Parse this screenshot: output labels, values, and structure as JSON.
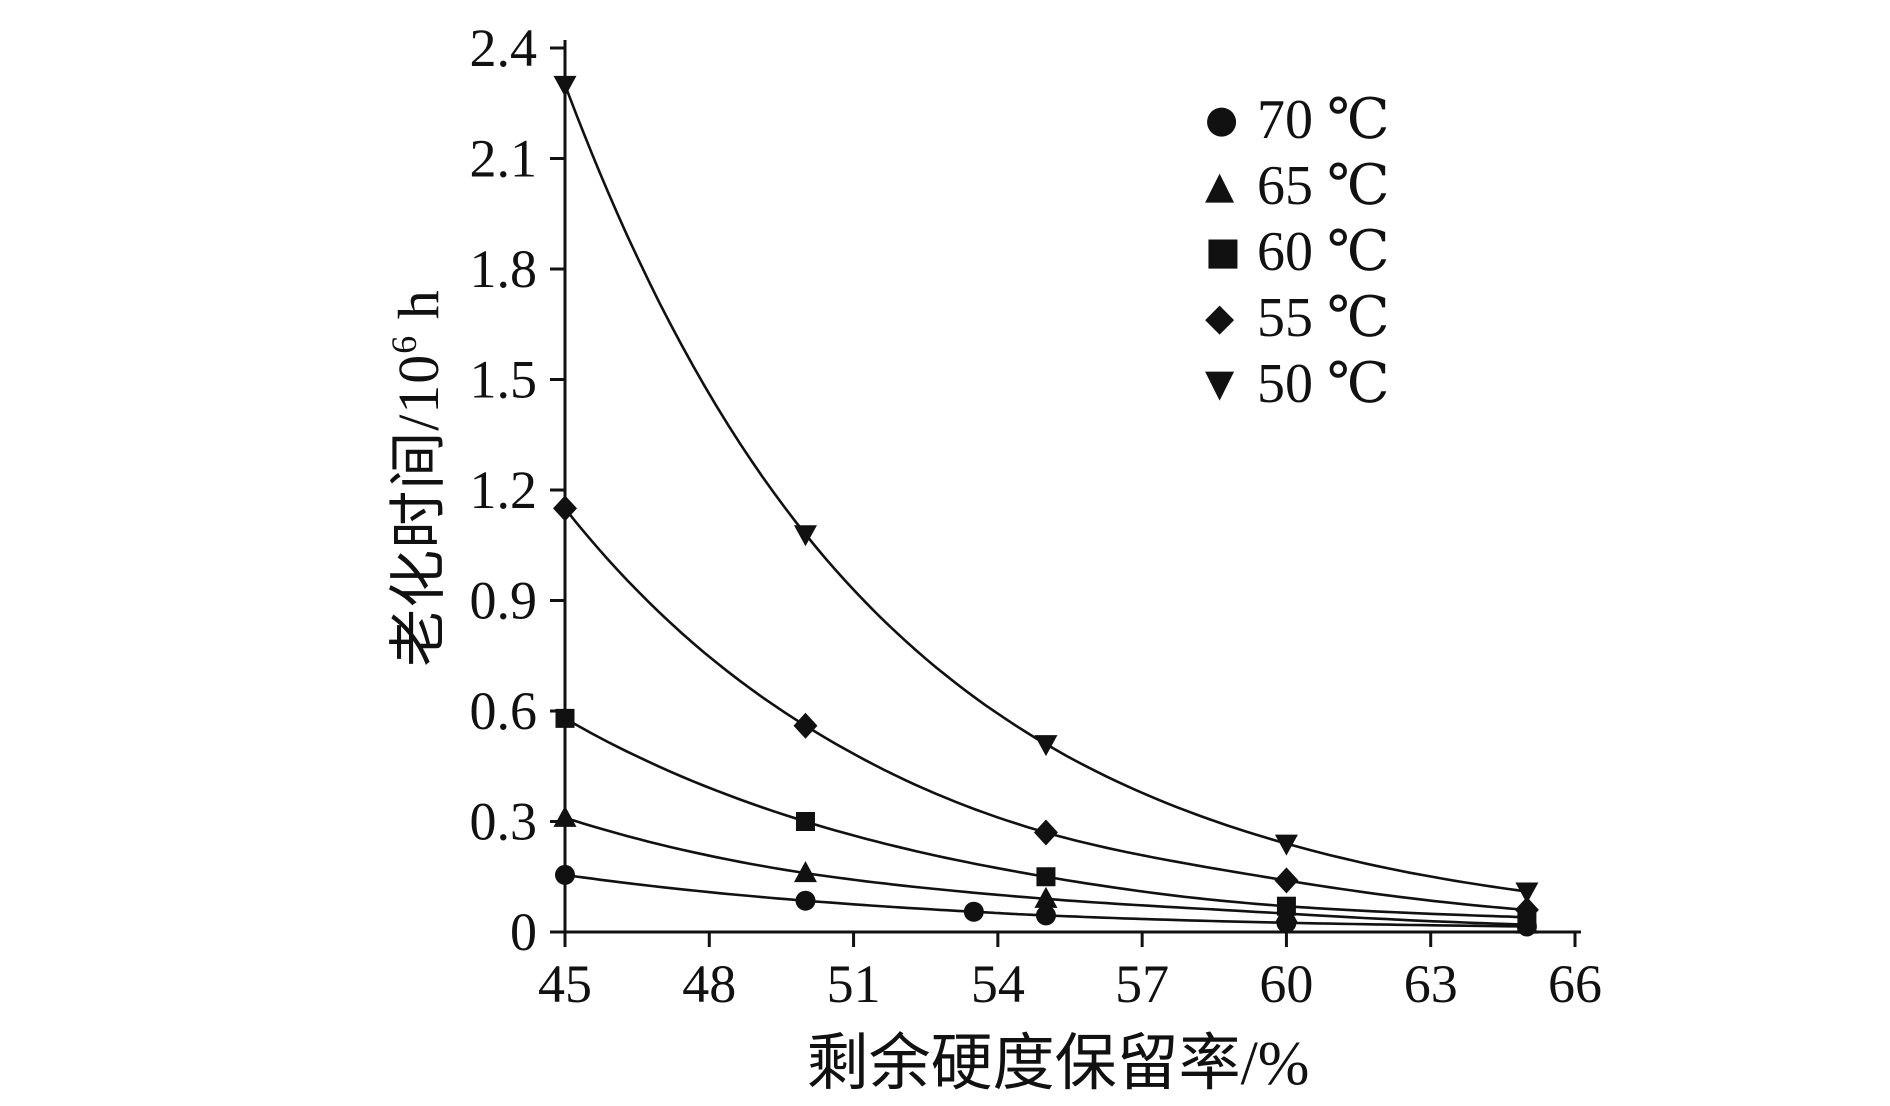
{
  "chart_data": {
    "type": "line",
    "title": "",
    "xlabel": "剩余硬度保留率/%",
    "ylabel_main": "老化时间/10",
    "ylabel_sup": "6",
    "ylabel_unit": " h",
    "xlim": [
      45,
      66
    ],
    "ylim": [
      0,
      2.4
    ],
    "x_ticks": [
      45,
      48,
      51,
      54,
      57,
      60,
      63,
      66
    ],
    "x_tick_labels": [
      "45",
      "48",
      "51",
      "54",
      "57",
      "60",
      "63",
      "66"
    ],
    "y_ticks": [
      0,
      0.3,
      0.6,
      0.9,
      1.2,
      1.5,
      1.8,
      2.1,
      2.4
    ],
    "y_tick_labels": [
      "0",
      "0.3",
      "0.6",
      "0.9",
      "1.2",
      "1.5",
      "1.8",
      "2.1",
      "2.4"
    ],
    "grid": false,
    "legend_position": "upper right",
    "axis_color": "#111111",
    "line_color": "#111111",
    "series": [
      {
        "name": "70 ℃",
        "legend_label": "70 ℃",
        "marker": "circle",
        "marker_glyph": "●",
        "x": [
          45,
          50,
          53.5,
          55,
          60,
          65
        ],
        "y": [
          0.155,
          0.085,
          0.055,
          0.045,
          0.025,
          0.015
        ]
      },
      {
        "name": "65 ℃",
        "legend_label": "65 ℃",
        "marker": "triangle-up",
        "marker_glyph": "▲",
        "x": [
          45,
          50,
          55,
          60,
          65
        ],
        "y": [
          0.31,
          0.16,
          0.09,
          0.05,
          0.02
        ]
      },
      {
        "name": "60 ℃",
        "legend_label": "60 ℃",
        "marker": "square",
        "marker_glyph": "■",
        "x": [
          45,
          50,
          55,
          60,
          65
        ],
        "y": [
          0.58,
          0.3,
          0.15,
          0.07,
          0.04
        ]
      },
      {
        "name": "55 ℃",
        "legend_label": "55 ℃",
        "marker": "diamond",
        "marker_glyph": "◆",
        "x": [
          45,
          50,
          55,
          60,
          65
        ],
        "y": [
          1.15,
          0.56,
          0.27,
          0.14,
          0.06
        ]
      },
      {
        "name": "50 ℃",
        "legend_label": "50 ℃",
        "marker": "triangle-down",
        "marker_glyph": "▼",
        "x": [
          45,
          50,
          55,
          60,
          65
        ],
        "y": [
          2.3,
          1.08,
          0.51,
          0.24,
          0.11
        ]
      }
    ]
  }
}
